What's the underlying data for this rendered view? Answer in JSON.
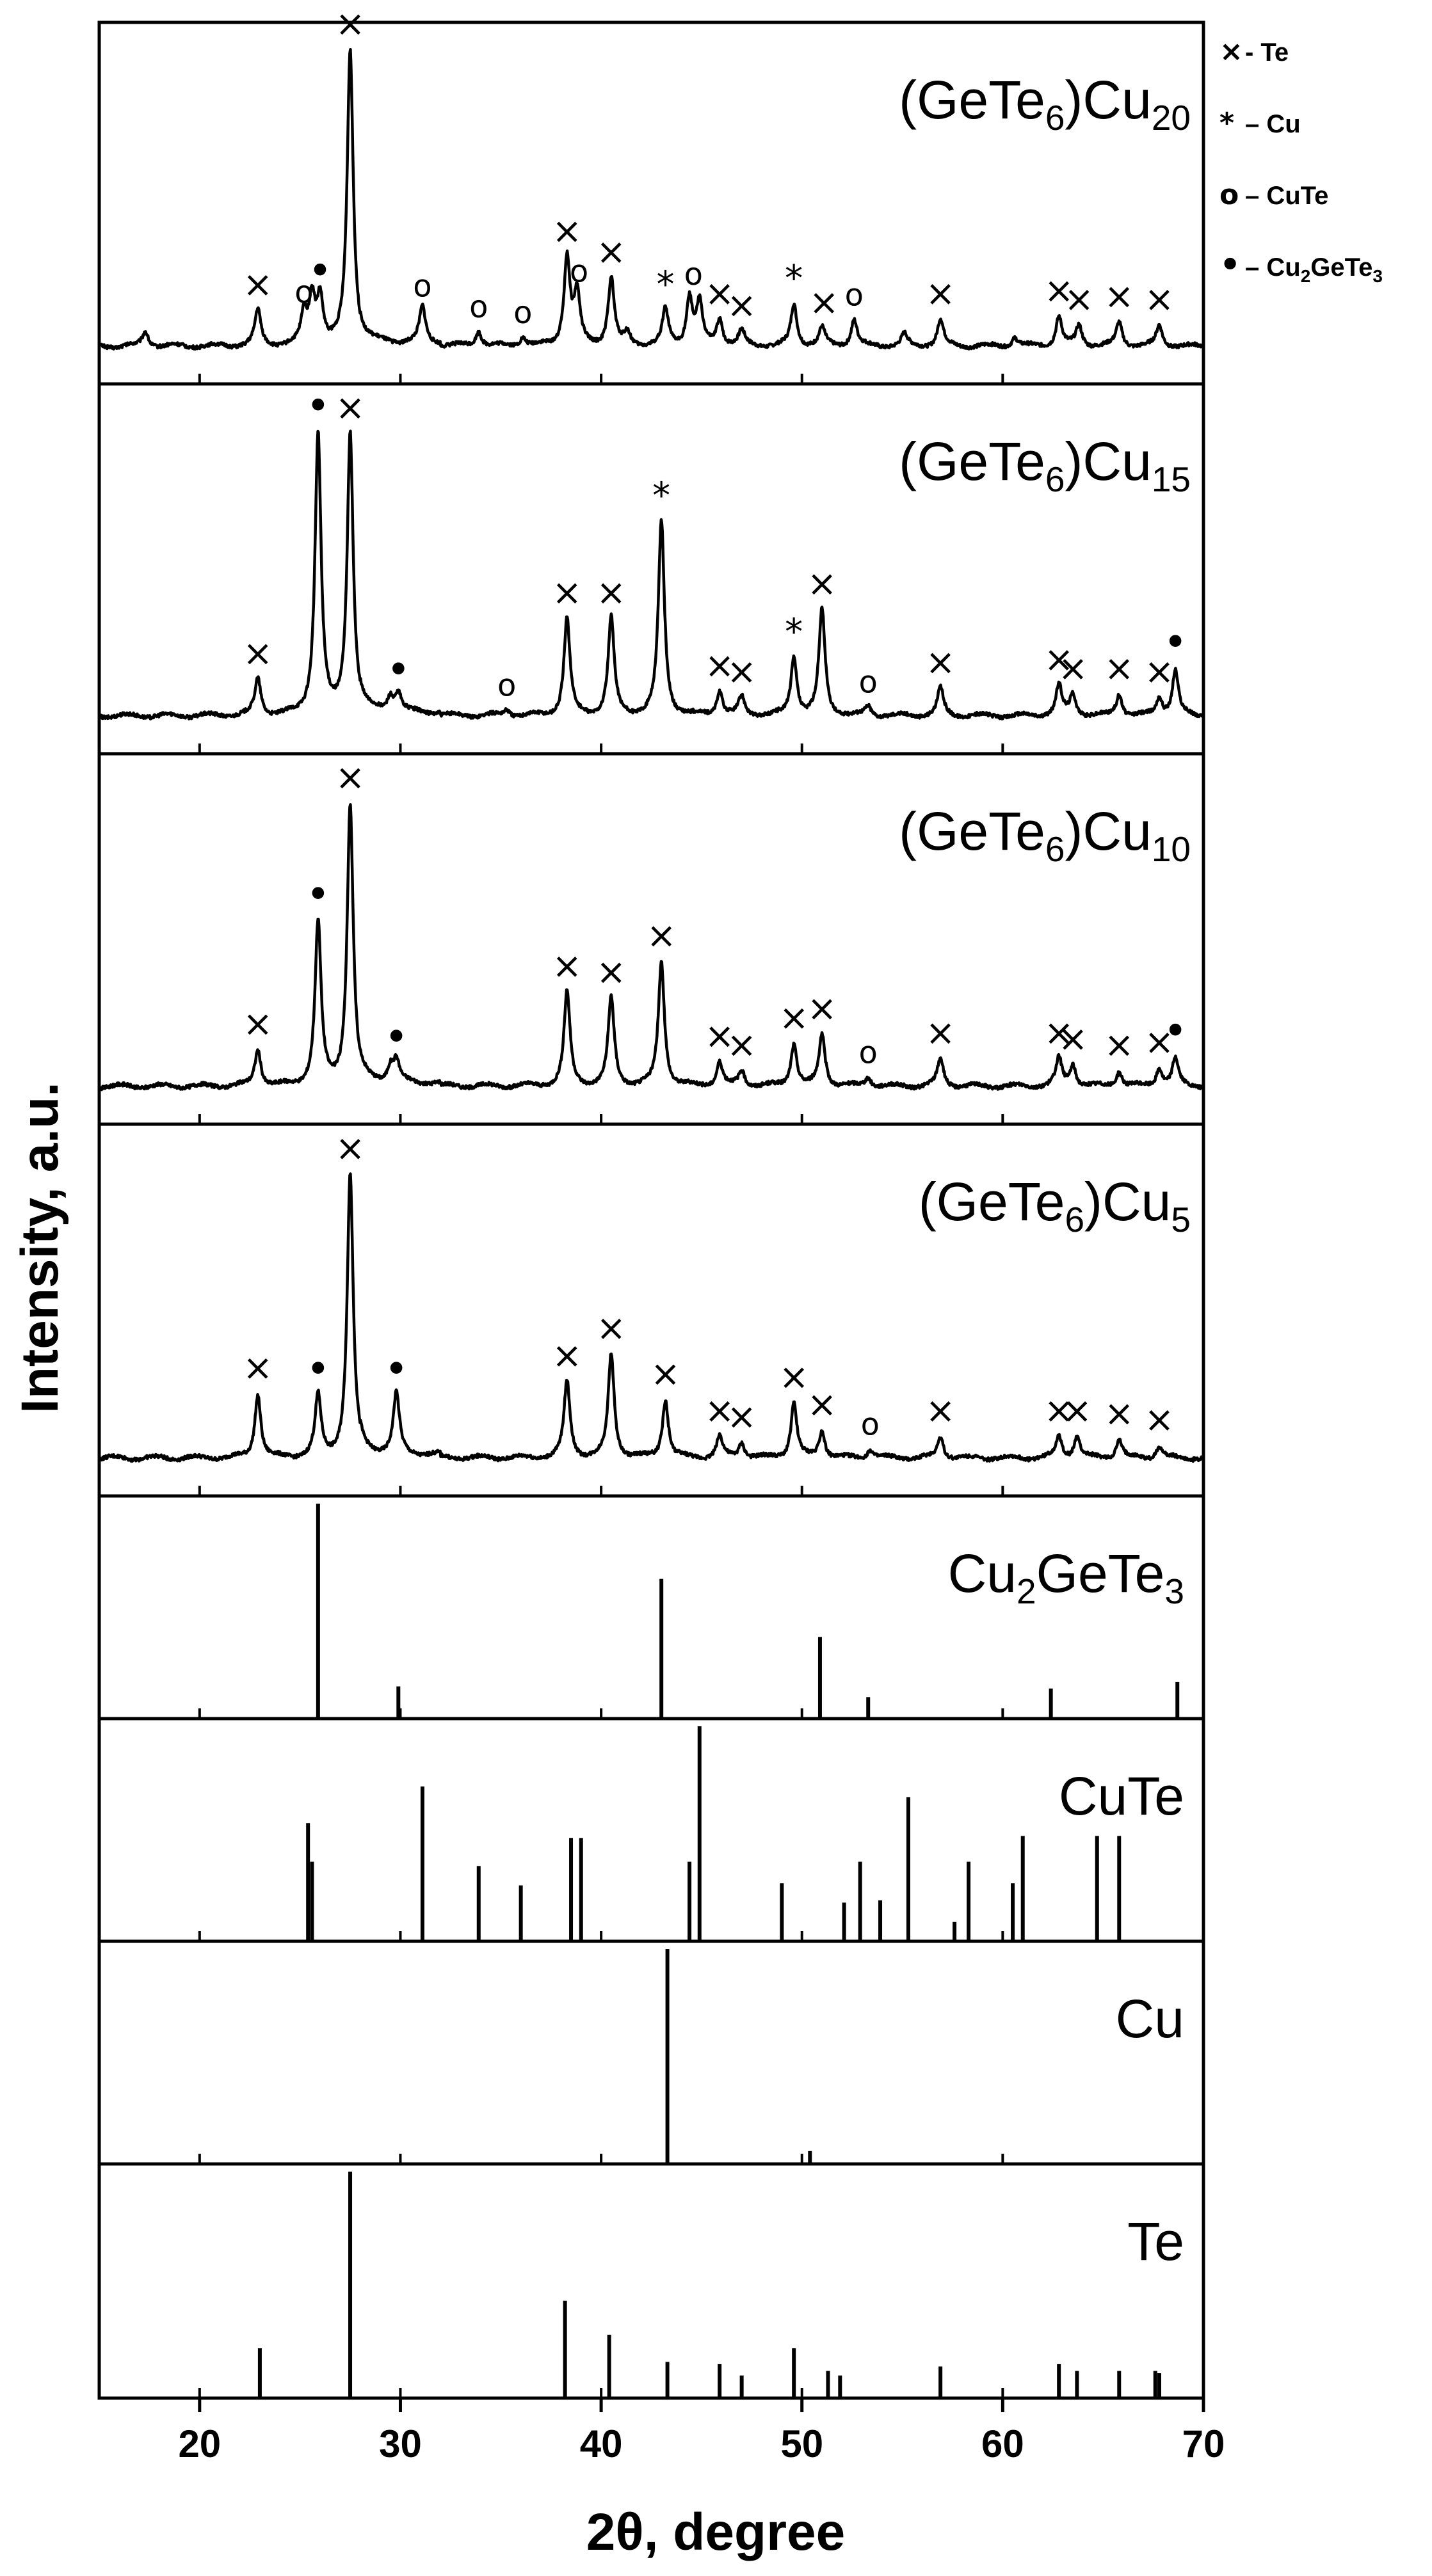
{
  "chart_data": {
    "type": "line",
    "xlabel": "2θ, degree",
    "ylabel": "Intensity, a.u.",
    "xlim": [
      15,
      70
    ],
    "xticks": [
      "20",
      "30",
      "40",
      "50",
      "60",
      "70"
    ],
    "legend": {
      "placement": "top-right outside",
      "entries": [
        {
          "marker": "cross",
          "symbol": "×",
          "text": "- Te"
        },
        {
          "marker": "asterisk",
          "symbol": "*",
          "text": "– Cu"
        },
        {
          "marker": "circle",
          "symbol": "o",
          "text": "– CuTe"
        },
        {
          "marker": "dot",
          "symbol": "•",
          "text": "– Cu",
          "sub": "2",
          "text2": "GeTe",
          "sub2": "3"
        }
      ]
    },
    "xrd_panels": [
      {
        "label": "(GeTe",
        "sub1": "6",
        "mid": ")Cu",
        "sub2": "20",
        "baseline": 0.03,
        "peak_width": 0.18,
        "peaks": [
          [
            17.3,
            0.05
          ],
          [
            22.9,
            0.12
          ],
          [
            25.2,
            0.1
          ],
          [
            25.6,
            0.16
          ],
          [
            26.0,
            0.16
          ],
          [
            27.5,
            1.0
          ],
          [
            31.1,
            0.12
          ],
          [
            33.9,
            0.05
          ],
          [
            36.1,
            0.03
          ],
          [
            38.3,
            0.3
          ],
          [
            38.8,
            0.17
          ],
          [
            40.5,
            0.23
          ],
          [
            41.3,
            0.04
          ],
          [
            43.2,
            0.12
          ],
          [
            44.4,
            0.16
          ],
          [
            44.9,
            0.14
          ],
          [
            45.9,
            0.09
          ],
          [
            47.0,
            0.05
          ],
          [
            49.6,
            0.14
          ],
          [
            51.0,
            0.06
          ],
          [
            52.6,
            0.09
          ],
          [
            55.1,
            0.04
          ],
          [
            56.9,
            0.09
          ],
          [
            60.6,
            0.03
          ],
          [
            62.8,
            0.1
          ],
          [
            63.8,
            0.07
          ],
          [
            65.8,
            0.08
          ],
          [
            67.8,
            0.07
          ]
        ],
        "markers": [
          {
            "x": 22.9,
            "h": 0.12,
            "s": "×"
          },
          {
            "x": 25.2,
            "h": 0.1,
            "s": "o"
          },
          {
            "x": 26.0,
            "h": 0.16,
            "s": "•"
          },
          {
            "x": 27.5,
            "h": 1.0,
            "s": "×"
          },
          {
            "x": 31.1,
            "h": 0.12,
            "s": "o"
          },
          {
            "x": 33.9,
            "h": 0.05,
            "s": "o"
          },
          {
            "x": 36.1,
            "h": 0.03,
            "s": "o"
          },
          {
            "x": 38.3,
            "h": 0.3,
            "s": "×"
          },
          {
            "x": 38.9,
            "h": 0.17,
            "s": "o"
          },
          {
            "x": 40.5,
            "h": 0.23,
            "s": "×"
          },
          {
            "x": 43.2,
            "h": 0.12,
            "s": "*"
          },
          {
            "x": 44.6,
            "h": 0.16,
            "s": "o"
          },
          {
            "x": 45.9,
            "h": 0.09,
            "s": "×"
          },
          {
            "x": 47.0,
            "h": 0.05,
            "s": "×"
          },
          {
            "x": 49.6,
            "h": 0.14,
            "s": "*"
          },
          {
            "x": 51.1,
            "h": 0.06,
            "s": "×"
          },
          {
            "x": 52.6,
            "h": 0.09,
            "s": "o"
          },
          {
            "x": 56.9,
            "h": 0.09,
            "s": "×"
          },
          {
            "x": 62.8,
            "h": 0.1,
            "s": "×"
          },
          {
            "x": 63.8,
            "h": 0.07,
            "s": "×"
          },
          {
            "x": 65.8,
            "h": 0.08,
            "s": "×"
          },
          {
            "x": 67.8,
            "h": 0.07,
            "s": "×"
          }
        ]
      },
      {
        "label": "(GeTe",
        "sub1": "6",
        "mid": ")Cu",
        "sub2": "15",
        "baseline": 0.03,
        "peak_width": 0.18,
        "peaks": [
          [
            22.9,
            0.12
          ],
          [
            25.9,
            0.93
          ],
          [
            27.5,
            0.93
          ],
          [
            29.5,
            0.05
          ],
          [
            29.9,
            0.06
          ],
          [
            35.3,
            0.02
          ],
          [
            38.3,
            0.32
          ],
          [
            40.5,
            0.32
          ],
          [
            43.0,
            0.64
          ],
          [
            45.9,
            0.08
          ],
          [
            47.0,
            0.06
          ],
          [
            49.6,
            0.19
          ],
          [
            51.0,
            0.35
          ],
          [
            53.3,
            0.03
          ],
          [
            56.9,
            0.09
          ],
          [
            62.8,
            0.1
          ],
          [
            63.5,
            0.07
          ],
          [
            65.8,
            0.07
          ],
          [
            67.8,
            0.06
          ],
          [
            68.6,
            0.15
          ]
        ],
        "markers": [
          {
            "x": 22.9,
            "h": 0.12,
            "s": "×"
          },
          {
            "x": 25.9,
            "h": 0.93,
            "s": "•"
          },
          {
            "x": 27.5,
            "h": 0.93,
            "s": "×"
          },
          {
            "x": 29.9,
            "h": 0.06,
            "s": "•"
          },
          {
            "x": 35.3,
            "h": 0.02,
            "s": "o"
          },
          {
            "x": 38.3,
            "h": 0.32,
            "s": "×"
          },
          {
            "x": 40.5,
            "h": 0.32,
            "s": "×"
          },
          {
            "x": 43.0,
            "h": 0.64,
            "s": "*"
          },
          {
            "x": 45.9,
            "h": 0.08,
            "s": "×"
          },
          {
            "x": 47.0,
            "h": 0.06,
            "s": "×"
          },
          {
            "x": 49.6,
            "h": 0.19,
            "s": "*"
          },
          {
            "x": 51.0,
            "h": 0.35,
            "s": "×"
          },
          {
            "x": 53.3,
            "h": 0.03,
            "s": "o"
          },
          {
            "x": 56.9,
            "h": 0.09,
            "s": "×"
          },
          {
            "x": 62.8,
            "h": 0.1,
            "s": "×"
          },
          {
            "x": 63.5,
            "h": 0.07,
            "s": "×"
          },
          {
            "x": 65.8,
            "h": 0.07,
            "s": "×"
          },
          {
            "x": 67.8,
            "h": 0.06,
            "s": "×"
          },
          {
            "x": 68.6,
            "h": 0.15,
            "s": "•"
          }
        ]
      },
      {
        "label": "(GeTe",
        "sub1": "6",
        "mid": ")Cu",
        "sub2": "10",
        "baseline": 0.03,
        "peak_width": 0.18,
        "peaks": [
          [
            22.9,
            0.12
          ],
          [
            25.9,
            0.54
          ],
          [
            27.5,
            0.93
          ],
          [
            29.5,
            0.05
          ],
          [
            29.8,
            0.07
          ],
          [
            38.3,
            0.31
          ],
          [
            40.5,
            0.29
          ],
          [
            43.0,
            0.41
          ],
          [
            45.9,
            0.08
          ],
          [
            47.0,
            0.05
          ],
          [
            49.6,
            0.14
          ],
          [
            51.0,
            0.17
          ],
          [
            53.3,
            0.03
          ],
          [
            56.9,
            0.09
          ],
          [
            62.8,
            0.09
          ],
          [
            63.5,
            0.07
          ],
          [
            65.8,
            0.05
          ],
          [
            67.8,
            0.06
          ],
          [
            68.6,
            0.09
          ]
        ],
        "markers": [
          {
            "x": 22.9,
            "h": 0.12,
            "s": "×"
          },
          {
            "x": 25.9,
            "h": 0.54,
            "s": "•"
          },
          {
            "x": 27.5,
            "h": 0.93,
            "s": "×"
          },
          {
            "x": 29.8,
            "h": 0.07,
            "s": "•"
          },
          {
            "x": 38.3,
            "h": 0.31,
            "s": "×"
          },
          {
            "x": 40.5,
            "h": 0.29,
            "s": "×"
          },
          {
            "x": 43.0,
            "h": 0.41,
            "s": "×"
          },
          {
            "x": 45.9,
            "h": 0.08,
            "s": "×"
          },
          {
            "x": 47.0,
            "h": 0.05,
            "s": "×"
          },
          {
            "x": 49.6,
            "h": 0.14,
            "s": "×"
          },
          {
            "x": 51.0,
            "h": 0.17,
            "s": "×"
          },
          {
            "x": 53.3,
            "h": 0.03,
            "s": "o"
          },
          {
            "x": 56.9,
            "h": 0.09,
            "s": "×"
          },
          {
            "x": 62.8,
            "h": 0.09,
            "s": "×"
          },
          {
            "x": 63.5,
            "h": 0.07,
            "s": "×"
          },
          {
            "x": 65.8,
            "h": 0.05,
            "s": "×"
          },
          {
            "x": 67.8,
            "h": 0.06,
            "s": "×"
          },
          {
            "x": 68.6,
            "h": 0.09,
            "s": "•"
          }
        ]
      },
      {
        "label": "(GeTe",
        "sub1": "6",
        "mid": ")Cu",
        "sub2": "5",
        "baseline": 0.03,
        "peak_width": 0.18,
        "peaks": [
          [
            22.9,
            0.21
          ],
          [
            25.9,
            0.2
          ],
          [
            27.5,
            0.93
          ],
          [
            29.8,
            0.2
          ],
          [
            38.3,
            0.25
          ],
          [
            40.5,
            0.34
          ],
          [
            43.2,
            0.19
          ],
          [
            45.9,
            0.07
          ],
          [
            47.0,
            0.05
          ],
          [
            49.6,
            0.18
          ],
          [
            51.0,
            0.09
          ],
          [
            53.4,
            0.03
          ],
          [
            56.9,
            0.07
          ],
          [
            62.8,
            0.07
          ],
          [
            63.7,
            0.07
          ],
          [
            65.8,
            0.06
          ],
          [
            67.8,
            0.04
          ]
        ],
        "markers": [
          {
            "x": 22.9,
            "h": 0.21,
            "s": "×"
          },
          {
            "x": 25.9,
            "h": 0.2,
            "s": "•"
          },
          {
            "x": 27.5,
            "h": 0.93,
            "s": "×"
          },
          {
            "x": 29.8,
            "h": 0.2,
            "s": "•"
          },
          {
            "x": 38.3,
            "h": 0.25,
            "s": "×"
          },
          {
            "x": 40.5,
            "h": 0.34,
            "s": "×"
          },
          {
            "x": 43.2,
            "h": 0.19,
            "s": "×"
          },
          {
            "x": 45.9,
            "h": 0.07,
            "s": "×"
          },
          {
            "x": 47.0,
            "h": 0.05,
            "s": "×"
          },
          {
            "x": 49.6,
            "h": 0.18,
            "s": "×"
          },
          {
            "x": 51.0,
            "h": 0.09,
            "s": "×"
          },
          {
            "x": 53.4,
            "h": 0.03,
            "s": "o"
          },
          {
            "x": 56.9,
            "h": 0.07,
            "s": "×"
          },
          {
            "x": 62.8,
            "h": 0.07,
            "s": "×"
          },
          {
            "x": 63.7,
            "h": 0.07,
            "s": "×"
          },
          {
            "x": 65.8,
            "h": 0.06,
            "s": "×"
          },
          {
            "x": 67.8,
            "h": 0.04,
            "s": "×"
          }
        ]
      }
    ],
    "reference_panels": [
      {
        "label": "Cu",
        "sub1": "2",
        "mid": "GeTe",
        "sub2": "3",
        "lines": [
          [
            25.9,
            1.0
          ],
          [
            29.9,
            0.15
          ],
          [
            43.0,
            0.65
          ],
          [
            50.9,
            0.38
          ],
          [
            53.3,
            0.1
          ],
          [
            62.4,
            0.14
          ],
          [
            68.7,
            0.17
          ]
        ]
      },
      {
        "label": "CuTe",
        "lines": [
          [
            25.4,
            0.55
          ],
          [
            25.6,
            0.37
          ],
          [
            31.1,
            0.72
          ],
          [
            33.9,
            0.35
          ],
          [
            36.0,
            0.26
          ],
          [
            38.5,
            0.48
          ],
          [
            39.0,
            0.48
          ],
          [
            44.4,
            0.37
          ],
          [
            44.9,
            1.0
          ],
          [
            49.0,
            0.27
          ],
          [
            52.1,
            0.18
          ],
          [
            52.9,
            0.37
          ],
          [
            53.9,
            0.19
          ],
          [
            55.3,
            0.67
          ],
          [
            57.6,
            0.09
          ],
          [
            58.3,
            0.37
          ],
          [
            60.5,
            0.27
          ],
          [
            61.0,
            0.49
          ],
          [
            64.7,
            0.49
          ],
          [
            65.8,
            0.49
          ]
        ]
      },
      {
        "label": "Cu",
        "lines": [
          [
            43.3,
            1.0
          ],
          [
            50.4,
            0.06
          ]
        ]
      },
      {
        "label": "Te",
        "lines": [
          [
            23.0,
            0.22
          ],
          [
            27.5,
            1.0
          ],
          [
            38.2,
            0.43
          ],
          [
            40.4,
            0.28
          ],
          [
            43.3,
            0.16
          ],
          [
            45.9,
            0.15
          ],
          [
            47.0,
            0.1
          ],
          [
            49.6,
            0.22
          ],
          [
            51.3,
            0.12
          ],
          [
            51.9,
            0.1
          ],
          [
            56.9,
            0.14
          ],
          [
            62.8,
            0.15
          ],
          [
            63.7,
            0.12
          ],
          [
            65.8,
            0.12
          ],
          [
            67.6,
            0.12
          ],
          [
            67.8,
            0.11
          ]
        ]
      }
    ]
  },
  "colors": {
    "line": "#000000",
    "grid": "#000000",
    "background": "#ffffff"
  }
}
